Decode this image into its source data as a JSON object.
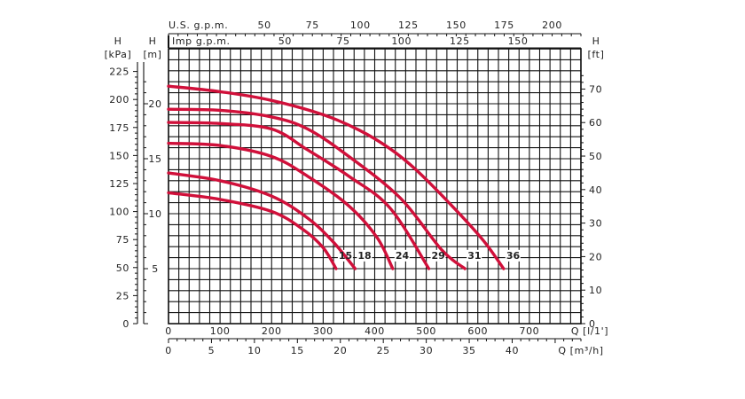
{
  "chart_data": {
    "type": "line",
    "title": "",
    "x_primary": {
      "label": "Q [l/1']",
      "range": [
        0,
        800
      ],
      "ticks": [
        0,
        100,
        200,
        300,
        400,
        500,
        600,
        700
      ]
    },
    "x_m3h": {
      "label": "Q [m³/h]",
      "range": [
        0,
        48
      ],
      "ticks": [
        0,
        5,
        10,
        15,
        20,
        25,
        30,
        35,
        40
      ]
    },
    "x_usgpm": {
      "label": "U.S. g.p.m.",
      "ticks": [
        50,
        75,
        100,
        125,
        150,
        175,
        200
      ]
    },
    "x_impgpm": {
      "label": "Imp g.p.m.",
      "ticks": [
        50,
        75,
        100,
        125,
        150
      ]
    },
    "y_m": {
      "label_top": "H",
      "label_unit": "[m]",
      "range": [
        0,
        25
      ],
      "ticks": [
        5,
        10,
        15,
        20
      ]
    },
    "y_kpa": {
      "label_top": "H",
      "label_unit": "[kPa]",
      "ticks": [
        0,
        25,
        50,
        75,
        100,
        125,
        150,
        175,
        200,
        225
      ]
    },
    "y_ft": {
      "label_top": "H",
      "label_unit": "[ft]",
      "ticks": [
        0,
        10,
        20,
        30,
        40,
        50,
        60,
        70
      ]
    },
    "grid": true,
    "series_color": "#d0103a",
    "series": [
      {
        "name": "15",
        "points": [
          [
            0,
            11.9
          ],
          [
            100,
            11.3
          ],
          [
            200,
            10.2
          ],
          [
            260,
            8.6
          ],
          [
            300,
            6.9
          ],
          [
            325,
            5.0
          ]
        ]
      },
      {
        "name": "18",
        "points": [
          [
            0,
            13.7
          ],
          [
            100,
            13.0
          ],
          [
            200,
            11.6
          ],
          [
            270,
            9.6
          ],
          [
            320,
            7.4
          ],
          [
            362,
            5.0
          ]
        ]
      },
      {
        "name": "24",
        "points": [
          [
            0,
            16.4
          ],
          [
            100,
            16.2
          ],
          [
            200,
            15.2
          ],
          [
            270,
            13.4
          ],
          [
            350,
            10.7
          ],
          [
            405,
            7.8
          ],
          [
            435,
            5.0
          ]
        ]
      },
      {
        "name": "29",
        "points": [
          [
            0,
            18.3
          ],
          [
            100,
            18.2
          ],
          [
            200,
            17.7
          ],
          [
            270,
            15.8
          ],
          [
            350,
            13.4
          ],
          [
            430,
            10.5
          ],
          [
            505,
            5.0
          ]
        ]
      },
      {
        "name": "31",
        "points": [
          [
            0,
            19.5
          ],
          [
            100,
            19.4
          ],
          [
            200,
            18.8
          ],
          [
            270,
            17.7
          ],
          [
            350,
            15.2
          ],
          [
            450,
            11.4
          ],
          [
            530,
            6.7
          ],
          [
            575,
            5.0
          ]
        ]
      },
      {
        "name": "36",
        "points": [
          [
            0,
            21.6
          ],
          [
            100,
            21.1
          ],
          [
            200,
            20.3
          ],
          [
            300,
            19.0
          ],
          [
            370,
            17.6
          ],
          [
            430,
            15.9
          ],
          [
            480,
            14.0
          ],
          [
            550,
            10.7
          ],
          [
            610,
            7.6
          ],
          [
            650,
            5.0
          ]
        ]
      }
    ]
  }
}
